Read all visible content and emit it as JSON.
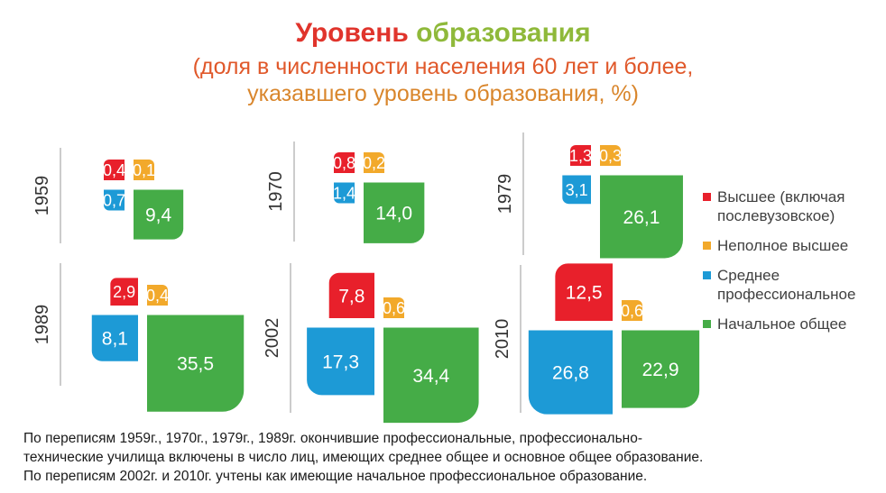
{
  "title_parts": [
    "Уровень",
    " ",
    "образования"
  ],
  "title_colors": [
    "#e0342c",
    "#e0342c",
    "#8fb93a"
  ],
  "subtitle_line1": "(доля в численности населения 60 лет и более,",
  "subtitle_line2": "указавшего уровень образования, %)",
  "colors": {
    "higher": "#e8202b",
    "incomplete_higher": "#f2a92b",
    "secondary_professional": "#1d9ad6",
    "primary_general": "#45ac47"
  },
  "legend": [
    {
      "key": "higher",
      "label_line1": "Высшее (включая",
      "label_line2": "послевузовское)"
    },
    {
      "key": "incomplete_higher",
      "label_line1": "Неполное высшее",
      "label_line2": ""
    },
    {
      "key": "secondary_professional",
      "label_line1": "Среднее",
      "label_line2": "профессиональное"
    },
    {
      "key": "primary_general",
      "label_line1": "Начальное общее",
      "label_line2": ""
    }
  ],
  "notes": [
    "По переписям 1959г., 1970г., 1979г., 1989г. окончившие профессиональные, профессионально-",
    "технические училища  включены в число лиц,  имеющих  среднее общее и  основное общее образование.",
    "По переписям 2002г. и 2010г. учтены как имеющие  начальное профессиональное образование."
  ],
  "chart_data": {
    "type": "area-squares",
    "title": "Уровень образования",
    "subtitle": "(доля в численности населения 60 лет и более, указавшего уровень образования, %)",
    "series_keys": [
      "higher",
      "incomplete_higher",
      "secondary_professional",
      "primary_general"
    ],
    "series": [
      {
        "name": "Высшее (включая послевузовское)",
        "key": "higher"
      },
      {
        "name": "Неполное высшее",
        "key": "incomplete_higher"
      },
      {
        "name": "Среднее профессиональное",
        "key": "secondary_professional"
      },
      {
        "name": "Начальное общее",
        "key": "primary_general"
      }
    ],
    "years": [
      {
        "year": "1959",
        "values": {
          "higher": "0,4",
          "incomplete_higher": "0,1",
          "secondary_professional": "0,7",
          "primary_general": "9,4"
        }
      },
      {
        "year": "1970",
        "values": {
          "higher": "0,8",
          "incomplete_higher": "0,2",
          "secondary_professional": "1,4",
          "primary_general": "14,0"
        }
      },
      {
        "year": "1979",
        "values": {
          "higher": "1,3",
          "incomplete_higher": "0,3",
          "secondary_professional": "3,1",
          "primary_general": "26,1"
        }
      },
      {
        "year": "1989",
        "values": {
          "higher": "2,9",
          "incomplete_higher": "0,4",
          "secondary_professional": "8,1",
          "primary_general": "35,5"
        }
      },
      {
        "year": "2002",
        "values": {
          "higher": "7,8",
          "incomplete_higher": "0,6",
          "secondary_professional": "17,3",
          "primary_general": "34,4"
        }
      },
      {
        "year": "2010",
        "values": {
          "higher": "12,5",
          "incomplete_higher": "0,6",
          "secondary_professional": "26,8",
          "primary_general": "22,9"
        }
      }
    ]
  }
}
